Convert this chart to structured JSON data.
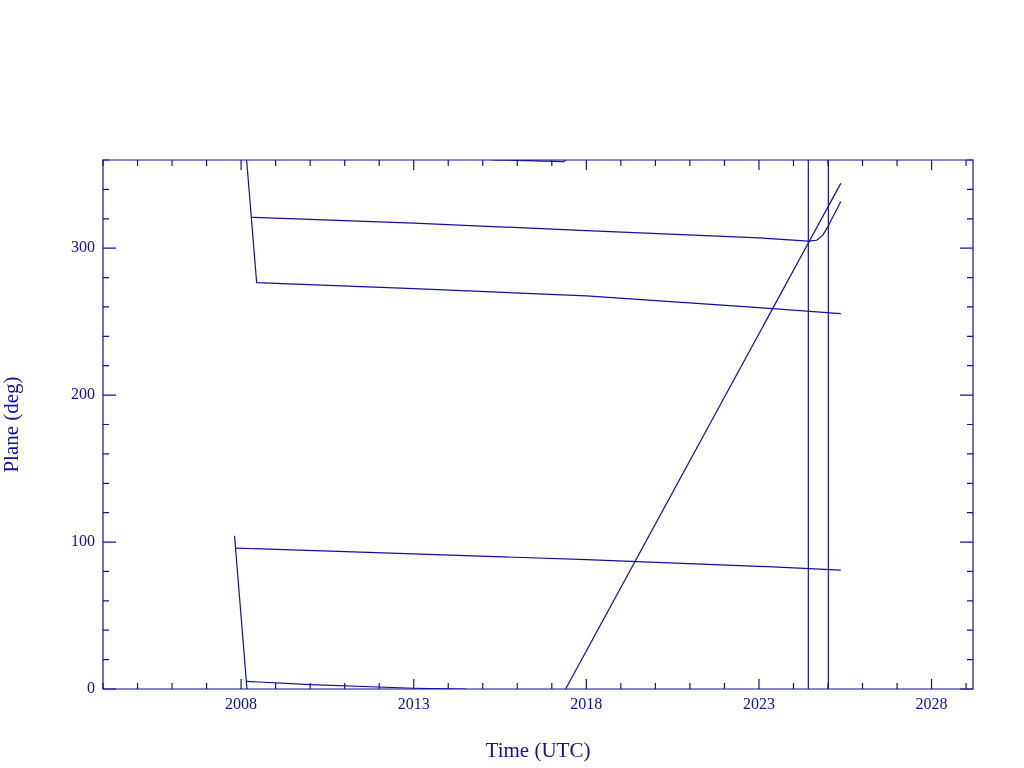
{
  "chart_data": {
    "type": "line",
    "xlabel": "Time (UTC)",
    "ylabel": "Plane (deg)",
    "xlim": [
      2004,
      2029.2
    ],
    "ylim": [
      0,
      360
    ],
    "xticks": [
      {
        "value": 2004,
        "label": null
      },
      {
        "value": 2005,
        "label": null
      },
      {
        "value": 2006,
        "label": null
      },
      {
        "value": 2007,
        "label": null
      },
      2008,
      {
        "value": 2009,
        "label": null
      },
      {
        "value": 2010,
        "label": null
      },
      {
        "value": 2011,
        "label": null
      },
      {
        "value": 2012,
        "label": null
      },
      2013,
      {
        "value": 2014,
        "label": null
      },
      {
        "value": 2015,
        "label": null
      },
      {
        "value": 2016,
        "label": null
      },
      {
        "value": 2017,
        "label": null
      },
      2018,
      {
        "value": 2019,
        "label": null
      },
      {
        "value": 2020,
        "label": null
      },
      {
        "value": 2021,
        "label": null
      },
      {
        "value": 2022,
        "label": null
      },
      2023,
      {
        "value": 2024,
        "label": null
      },
      {
        "value": 2025,
        "label": null
      },
      {
        "value": 2026,
        "label": null
      },
      {
        "value": 2027,
        "label": null
      },
      2028,
      {
        "value": 2029,
        "label": null
      }
    ],
    "yticks": [
      0,
      {
        "value": 20,
        "label": null
      },
      {
        "value": 40,
        "label": null
      },
      {
        "value": 60,
        "label": null
      },
      {
        "value": 80,
        "label": null
      },
      100,
      {
        "value": 120,
        "label": null
      },
      {
        "value": 140,
        "label": null
      },
      {
        "value": 160,
        "label": null
      },
      {
        "value": 180,
        "label": null
      },
      200,
      {
        "value": 220,
        "label": null
      },
      {
        "value": 240,
        "label": null
      },
      {
        "value": 260,
        "label": null
      },
      {
        "value": 280,
        "label": null
      },
      300,
      {
        "value": 320,
        "label": null
      },
      {
        "value": 340,
        "label": null
      },
      {
        "value": 360,
        "label": null
      }
    ],
    "grid": false,
    "legend": false,
    "marker": "none",
    "line_style": "solid",
    "series": [
      {
        "color": "#1010a0",
        "x": [
          2008.16,
          2008.45,
          2013,
          2018,
          2023,
          2025.37
        ],
        "values": [
          360,
          276.6,
          272.5,
          267.5,
          259.5,
          255.5
        ]
      },
      {
        "color": "#1010a0",
        "x": [
          2008.32,
          2013,
          2018,
          2023,
          2024.43,
          2024.67,
          2024.85,
          2025.01,
          2025.37
        ],
        "values": [
          321,
          317,
          312,
          307,
          304.8,
          305.4,
          308.9,
          315.2,
          331.8
        ]
      },
      {
        "color": "#1010a0",
        "x": [
          2017.4,
          2025.37
        ],
        "values": [
          0,
          344.1
        ]
      },
      {
        "color": "#1010a0",
        "x": [
          2015.25,
          2015.99,
          2017.35,
          2017.4
        ],
        "values": [
          360,
          359.8,
          358.9,
          360
        ]
      },
      {
        "color": "#1010a0",
        "x": [
          2007.81,
          2008.17
        ],
        "values": [
          104.3,
          0
        ]
      },
      {
        "color": "#1010a0",
        "x": [
          2007.85,
          2013,
          2018,
          2023,
          2025.37
        ],
        "values": [
          95.9,
          92,
          88,
          83.5,
          80.9
        ]
      },
      {
        "color": "#1010a0",
        "x": [
          2008.16,
          2010,
          2013,
          2014.51
        ],
        "values": [
          5.2,
          3,
          0.5,
          0
        ]
      }
    ],
    "ref_lines": [
      {
        "axis": "x",
        "value": 2024.43,
        "color": "#1010a0"
      },
      {
        "axis": "x",
        "value": 2025.01,
        "color": "#1010a0"
      }
    ]
  }
}
